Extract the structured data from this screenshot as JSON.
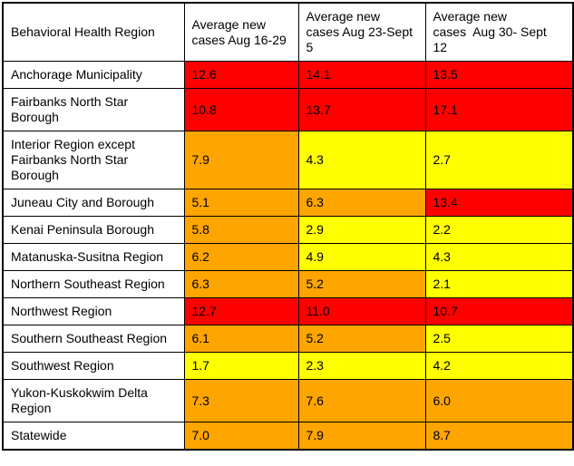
{
  "colors": {
    "red": "#FF0000",
    "orange": "#FFA500",
    "yellow": "#FFFF00",
    "border": "#000000",
    "text": "#000000",
    "background": "#FFFFFF"
  },
  "chart_data": {
    "type": "table",
    "title": "",
    "columns": [
      "Behavioral Health Region",
      "Average new\ncases Aug 16-29",
      "Average new\ncases Aug 23-Sept\n5",
      "Average new\ncases  Aug 30- Sept\n12"
    ],
    "rows": [
      {
        "region": "Anchorage Municipality",
        "values": [
          "12.6",
          "14.1",
          "13.5"
        ],
        "cell_colors": [
          "red",
          "red",
          "red"
        ]
      },
      {
        "region": "Fairbanks North Star Borough",
        "values": [
          "10.8",
          "13.7",
          "17.1"
        ],
        "cell_colors": [
          "red",
          "red",
          "red"
        ]
      },
      {
        "region": "Interior Region except Fairbanks North Star Borough",
        "values": [
          "7.9",
          "4.3",
          "2.7"
        ],
        "cell_colors": [
          "orange",
          "yellow",
          "yellow"
        ]
      },
      {
        "region": "Juneau City and Borough",
        "values": [
          "5.1",
          "6.3",
          "13.4"
        ],
        "cell_colors": [
          "orange",
          "orange",
          "red"
        ]
      },
      {
        "region": "Kenai Peninsula Borough",
        "values": [
          "5.8",
          "2.9",
          "2.2"
        ],
        "cell_colors": [
          "orange",
          "yellow",
          "yellow"
        ]
      },
      {
        "region": "Matanuska-Susitna Region",
        "values": [
          "6.2",
          "4.9",
          "4.3"
        ],
        "cell_colors": [
          "orange",
          "yellow",
          "yellow"
        ]
      },
      {
        "region": "Northern Southeast Region",
        "values": [
          "6.3",
          "5.2",
          "2.1"
        ],
        "cell_colors": [
          "orange",
          "orange",
          "yellow"
        ]
      },
      {
        "region": "Northwest Region",
        "values": [
          "12.7",
          "11.0",
          "10.7"
        ],
        "cell_colors": [
          "red",
          "red",
          "red"
        ]
      },
      {
        "region": "Southern Southeast Region",
        "values": [
          "6.1",
          "5.2",
          "2.5"
        ],
        "cell_colors": [
          "orange",
          "orange",
          "yellow"
        ]
      },
      {
        "region": "Southwest Region",
        "values": [
          "1.7",
          "2.3",
          "4.2"
        ],
        "cell_colors": [
          "yellow",
          "yellow",
          "yellow"
        ]
      },
      {
        "region": "Yukon-Kuskokwim Delta Region",
        "values": [
          "7.3",
          "7.6",
          "6.0"
        ],
        "cell_colors": [
          "orange",
          "orange",
          "orange"
        ]
      },
      {
        "region": "Statewide",
        "values": [
          "7.0",
          "7.9",
          "8.7"
        ],
        "cell_colors": [
          "orange",
          "orange",
          "orange"
        ]
      }
    ]
  }
}
